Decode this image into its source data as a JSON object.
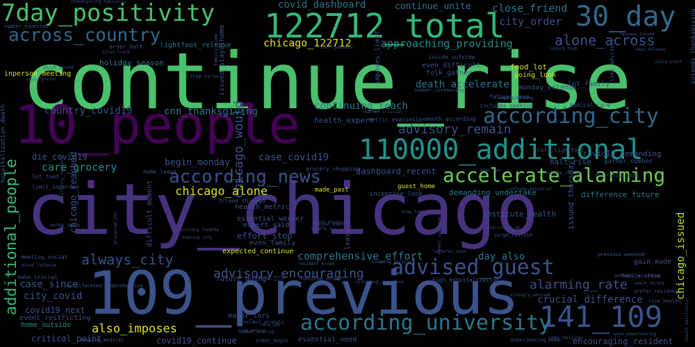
{
  "words": [
    {
      "text": "continue_rise",
      "color": "#4ac16d",
      "vertical": false
    },
    {
      "text": "city_chicago",
      "color": "#46327e",
      "vertical": false
    },
    {
      "text": "109_previous",
      "color": "#3b528b",
      "vertical": false
    },
    {
      "text": "10_people",
      "color": "#440154",
      "vertical": false
    },
    {
      "text": "122712_total",
      "color": "#35b779",
      "vertical": false
    },
    {
      "text": "7day_positivity",
      "color": "#4ac16d",
      "vertical": false
    },
    {
      "text": "30_day",
      "color": "#31688e",
      "vertical": false
    },
    {
      "text": "110000_additional",
      "color": "#21918c",
      "vertical": false
    },
    {
      "text": "141_109",
      "color": "#3b528b",
      "vertical": false
    },
    {
      "text": "accelerate_alarming",
      "color": "#6ece58",
      "vertical": false
    },
    {
      "text": "according_city",
      "color": "#31688e",
      "vertical": false
    },
    {
      "text": "according_university",
      "color": "#2a788e",
      "vertical": false
    },
    {
      "text": "advised_guest",
      "color": "#3b528b",
      "vertical": false
    },
    {
      "text": "according_news",
      "color": "#3b528b",
      "vertical": false
    },
    {
      "text": "across_country",
      "color": "#31688e",
      "vertical": false
    },
    {
      "text": "additional_people",
      "color": "#35b779",
      "vertical": true
    },
    {
      "text": "chicago_would",
      "color": "#3b528b",
      "vertical": true
    },
    {
      "text": "chicago_issued",
      "color": "#b5de2b",
      "vertical": true
    },
    {
      "text": "always_city",
      "color": "#3b528b",
      "vertical": false
    },
    {
      "text": "advisory_encouraging",
      "color": "#3b528b",
      "vertical": false
    },
    {
      "text": "alarming_rate",
      "color": "#3b528b",
      "vertical": false
    },
    {
      "text": "alone_across",
      "color": "#3b528b",
      "vertical": false
    },
    {
      "text": "advisory_remain",
      "color": "#3b528b",
      "vertical": false
    },
    {
      "text": "also_imposes",
      "color": "#dce319",
      "vertical": false
    },
    {
      "text": "chicago_alone",
      "color": "#dce319",
      "vertical": false
    },
    {
      "text": "covid_dashboard",
      "color": "#2a788e",
      "vertical": false
    },
    {
      "text": "continue_unite",
      "color": "#2a788e",
      "vertical": false
    },
    {
      "text": "close_friend",
      "color": "#2a788e",
      "vertical": false
    },
    {
      "text": "city_order",
      "color": "#3b528b",
      "vertical": false
    },
    {
      "text": "chicago_122712",
      "color": "#dce319",
      "vertical": false
    },
    {
      "text": "approaching_providing",
      "color": "#21918c",
      "vertical": false
    },
    {
      "text": "lightfoot_release",
      "color": "#2a788e",
      "vertical": false
    },
    {
      "text": "holiday_season",
      "color": "#2a788e",
      "vertical": false
    },
    {
      "text": "inperson_meeting",
      "color": "#dce319",
      "vertical": false
    },
    {
      "text": "country_covid19",
      "color": "#3b528b",
      "vertical": false
    },
    {
      "text": "cnn_thanksgiving",
      "color": "#2a788e",
      "vertical": false
    },
    {
      "text": "continuing_reach",
      "color": "#2a788e",
      "vertical": false
    },
    {
      "text": "care_grocery",
      "color": "#21918c",
      "vertical": false
    },
    {
      "text": "begin_monday",
      "color": "#3b528b",
      "vertical": false
    },
    {
      "text": "case_covid19",
      "color": "#3b528b",
      "vertical": false
    },
    {
      "text": "die_covid19",
      "color": "#3b528b",
      "vertical": false
    },
    {
      "text": "chicago_reached",
      "color": "#3b528b",
      "vertical": true
    },
    {
      "text": "death_accelerate",
      "color": "#2a788e",
      "vertical": false
    },
    {
      "text": "comprehensive_effort",
      "color": "#2a788e",
      "vertical": false
    },
    {
      "text": "case_since",
      "color": "#3b528b",
      "vertical": false
    },
    {
      "text": "city_covid",
      "color": "#3b528b",
      "vertical": false
    },
    {
      "text": "covid19_next",
      "color": "#3b528b",
      "vertical": false
    },
    {
      "text": "event_restricting",
      "color": "#3b528b",
      "vertical": false
    },
    {
      "text": "home_outside",
      "color": "#21918c",
      "vertical": false
    },
    {
      "text": "critical_point",
      "color": "#3b528b",
      "vertical": false
    },
    {
      "text": "covid19_continue",
      "color": "#3b528b",
      "vertical": false
    },
    {
      "text": "day_also",
      "color": "#2a788e",
      "vertical": false
    },
    {
      "text": "crucial_difference",
      "color": "#3b528b",
      "vertical": false
    },
    {
      "text": "encouraging_resident",
      "color": "#3b528b",
      "vertical": false
    },
    {
      "text": "covid19_demanding",
      "color": "#3b528b",
      "vertical": false
    },
    {
      "text": "dashboard_recent",
      "color": "#3b528b",
      "vertical": false
    },
    {
      "text": "demanding_undertake",
      "color": "#2a788e",
      "vertical": false
    },
    {
      "text": "difference_future",
      "color": "#2a788e",
      "vertical": false
    },
    {
      "text": "institute_health",
      "color": "#3b528b",
      "vertical": false
    },
    {
      "text": "effort_stop",
      "color": "#3b528b",
      "vertical": false
    },
    {
      "text": "expected_continue",
      "color": "#dce319",
      "vertical": false
    },
    {
      "text": "even_family",
      "color": "#3b528b",
      "vertical": false
    },
    {
      "text": "essential_worker",
      "color": "#3b528b",
      "vertical": false
    },
    {
      "text": "health_metric",
      "color": "#3b528b",
      "vertical": false
    },
    {
      "text": "expert_said",
      "color": "#3b528b",
      "vertical": false
    },
    {
      "text": "health_expert",
      "color": "#3b528b",
      "vertical": false
    },
    {
      "text": "halt_rise",
      "color": "#3b528b",
      "vertical": false
    },
    {
      "text": "food_lot",
      "color": "#dce319",
      "vertical": false
    },
    {
      "text": "going_look",
      "color": "#dce319",
      "vertical": false
    },
    {
      "text": "lot_family",
      "color": "#3b528b",
      "vertical": false
    },
    {
      "text": "monday_extends",
      "color": "#3b528b",
      "vertical": false
    },
    {
      "text": "even_difficult",
      "color": "#3b528b",
      "vertical": false
    },
    {
      "text": "folk_gather",
      "color": "#3b528b",
      "vertical": false
    },
    {
      "text": "gain_made",
      "color": "#3b528b",
      "vertical": false
    },
    {
      "text": "future_going",
      "color": "#3b528b",
      "vertical": false
    },
    {
      "text": "mayor_lori",
      "color": "#3b528b",
      "vertical": false
    },
    {
      "text": "essential_need",
      "color": "#3b528b",
      "vertical": false
    },
    {
      "text": "guest_home",
      "color": "#dce319",
      "vertical": false
    },
    {
      "text": "made_past",
      "color": "#dce319",
      "vertical": false
    },
    {
      "text": "incentive_look",
      "color": "#3b528b",
      "vertical": false
    },
    {
      "text": "gather_number",
      "color": "#3b528b",
      "vertical": false
    },
    {
      "text": "imposes_limit",
      "color": "#3b528b",
      "vertical": true
    },
    {
      "text": "issued_stayathome",
      "color": "#3b528b",
      "vertical": true
    },
    {
      "text": "issued_thursday",
      "color": "#3b528b",
      "vertical": true
    },
    {
      "text": "extends_thanksgiving",
      "color": "#3b528b",
      "vertical": true
    },
    {
      "text": "hospitalization_death",
      "color": "#3b528b",
      "vertical": true
    },
    {
      "text": "like_advisory",
      "color": "#3b528b",
      "vertical": true
    },
    {
      "text": "leave_school",
      "color": "#3b528b",
      "vertical": true
    },
    {
      "text": "difficult_moment",
      "color": "#3b528b",
      "vertical": true
    },
    {
      "text": "friend_chicago",
      "color": "#3b528b",
      "vertical": false
    },
    {
      "text": "home_leave",
      "color": "#3b528b",
      "vertical": false
    },
    {
      "text": "lori_lightfoot",
      "color": "#3b528b",
      "vertical": false
    },
    {
      "text": "medical_care",
      "color": "#3b528b",
      "vertical": false
    },
    {
      "text": "includes_seeking",
      "color": "#3b528b",
      "vertical": false
    },
    {
      "text": "limit_inperson",
      "color": "#3b528b",
      "vertical": false
    },
    {
      "text": "lot_food",
      "color": "#3b528b",
      "vertical": false
    },
    {
      "text": "meeting_social",
      "color": "#3b528b",
      "vertical": false
    },
    {
      "text": "make_crucial",
      "color": "#3b528b",
      "vertical": false
    },
    {
      "text": "grocery_shopping",
      "color": "#3b528b",
      "vertical": false
    },
    {
      "text": "fatigue_weve",
      "color": "#3b528b",
      "vertical": false
    },
    {
      "text": "order_halt",
      "color": "#3b528b",
      "vertical": false
    },
    {
      "text": "number_expected",
      "color": "#3b528b",
      "vertical": false
    },
    {
      "text": "inside_outside",
      "color": "#3b528b",
      "vertical": false
    },
    {
      "text": "month_according",
      "color": "#3b528b",
      "vertical": false
    },
    {
      "text": "metric_evaluation",
      "color": "#3b528b",
      "vertical": false
    },
    {
      "text": "foodthe_order",
      "color": "#3b528b",
      "vertical": false
    },
    {
      "text": "high_hospitalization",
      "color": "#3b528b",
      "vertical": false
    },
    {
      "text": "family_close",
      "color": "#3b528b",
      "vertical": false
    },
    {
      "text": "positivity_rate",
      "color": "#3b528b",
      "vertical": false
    },
    {
      "text": "previous_weekend",
      "color": "#3b528b",
      "vertical": false
    },
    {
      "text": "prefer_resident",
      "color": "#3b528b",
      "vertical": false
    },
    {
      "text": "rise_health",
      "color": "#3b528b",
      "vertical": false
    },
    {
      "text": "rate_holiday",
      "color": "#3b528b",
      "vertical": false
    },
    {
      "text": "experiencing_make",
      "color": "#3b528b",
      "vertical": false
    },
    {
      "text": "multifaceted_comprehensive",
      "color": "#3b528b",
      "vertical": false
    },
    {
      "text": "seeking_medical",
      "color": "#3b528b",
      "vertical": false
    },
    {
      "text": "order_begin",
      "color": "#3b528b",
      "vertical": false
    },
    {
      "text": "number_continuing",
      "color": "#3b528b",
      "vertical": false
    },
    {
      "text": "record_high",
      "color": "#3b528b",
      "vertical": false
    },
    {
      "text": "release_issued",
      "color": "#3b528b",
      "vertical": false
    },
    {
      "text": "news_release",
      "color": "#3b528b",
      "vertical": false
    },
    {
      "text": "since_start",
      "color": "#3b528b",
      "vertical": false
    },
    {
      "text": "thanksgiving_typically",
      "color": "#3b528b",
      "vertical": false
    },
    {
      "text": "point_second",
      "color": "#3b528b",
      "vertical": false
    },
    {
      "text": "would_prefer",
      "color": "#3b528b",
      "vertical": false
    },
    {
      "text": "surge_covid19",
      "color": "#3b528b",
      "vertical": false
    },
    {
      "text": "reach_record",
      "color": "#3b528b",
      "vertical": false
    },
    {
      "text": "restricting_10",
      "color": "#3b528b",
      "vertical": false
    },
    {
      "text": "resident_mixed",
      "color": "#3b528b",
      "vertical": false
    },
    {
      "text": "shopping_picking",
      "color": "#3b528b",
      "vertical": false
    },
    {
      "text": "second_surge",
      "color": "#3b528b",
      "vertical": false
    },
    {
      "text": "providing_incentive",
      "color": "#3b528b",
      "vertical": false
    },
    {
      "text": "pandemic_according",
      "color": "#3b528b",
      "vertical": false
    },
    {
      "text": "strongly_advised",
      "color": "#3b528b",
      "vertical": false
    },
    {
      "text": "picking_foodthe",
      "color": "#3b528b",
      "vertical": false
    },
    {
      "text": "soaring_city",
      "color": "#3b528b",
      "vertical": false
    },
    {
      "text": "people_u",
      "color": "#3b528b",
      "vertical": false
    },
    {
      "text": "unite_always",
      "color": "#3b528b",
      "vertical": false
    },
    {
      "text": "stay_home",
      "color": "#3b528b",
      "vertical": false
    },
    {
      "text": "mixed_latteras",
      "color": "#3b528b",
      "vertical": false
    },
    {
      "text": "latteras_case",
      "color": "#3b528b",
      "vertical": false
    },
    {
      "text": "resident_strongly",
      "color": "#3b528b",
      "vertical": false
    },
    {
      "text": "risk_seeing",
      "color": "#3b528b",
      "vertical": false
    },
    {
      "text": "social_event",
      "color": "#3b528b",
      "vertical": false
    },
    {
      "text": "number_soaring",
      "color": "#3b528b",
      "vertical": false
    },
    {
      "text": "result_positivity",
      "color": "#3b528b",
      "vertical": true
    },
    {
      "text": "positivity_resident",
      "color": "#3b528b",
      "vertical": true
    },
    {
      "text": "projected_die",
      "color": "#3b528b",
      "vertical": true
    },
    {
      "text": "stop_virus",
      "color": "#3b528b",
      "vertical": false
    },
    {
      "text": "start_pandemic",
      "color": "#3b528b",
      "vertical": false
    },
    {
      "text": "worker_seven",
      "color": "#3b528b",
      "vertical": false
    },
    {
      "text": "virus_track",
      "color": "#3b528b",
      "vertical": false
    },
    {
      "text": "weve_experiencing",
      "color": "#3b528b",
      "vertical": false
    },
    {
      "text": "rate_141",
      "color": "#3b528b",
      "vertical": false
    },
    {
      "text": "need_according",
      "color": "#3b528b",
      "vertical": false
    },
    {
      "text": "outside_essential",
      "color": "#3b528b",
      "vertical": false
    },
    {
      "text": "outside_chicago",
      "color": "#3b528b",
      "vertical": false
    },
    {
      "text": "mean_two",
      "color": "#3b528b",
      "vertical": false
    },
    {
      "text": "reached_critical",
      "color": "#3b528b",
      "vertical": false
    },
    {
      "text": "moment_continue",
      "color": "#3b528b",
      "vertical": true
    },
    {
      "text": "family_time",
      "color": "#3b528b",
      "vertical": true
    }
  ]
}
